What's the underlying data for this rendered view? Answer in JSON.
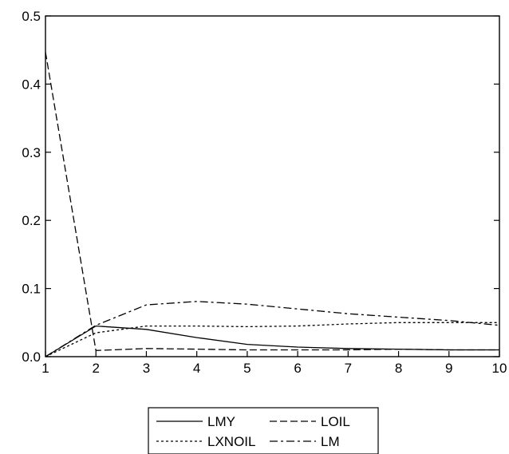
{
  "chart_data": {
    "type": "line",
    "title": "",
    "xlabel": "",
    "ylabel": "",
    "x": [
      1,
      2,
      3,
      4,
      5,
      6,
      7,
      8,
      9,
      10
    ],
    "xlim": [
      1,
      10
    ],
    "ylim": [
      0,
      0.5
    ],
    "x_ticks": [
      "1",
      "2",
      "3",
      "4",
      "5",
      "6",
      "7",
      "8",
      "9",
      "10"
    ],
    "y_ticks": [
      "0.0",
      "0.1",
      "0.2",
      "0.3",
      "0.4",
      "0.5"
    ],
    "y_tick_values": [
      0.0,
      0.1,
      0.2,
      0.3,
      0.4,
      0.5
    ],
    "grid": false,
    "legend_position": "bottom",
    "series": [
      {
        "name": "LMY",
        "style": "solid",
        "values": [
          0.0,
          0.045,
          0.04,
          0.028,
          0.018,
          0.014,
          0.012,
          0.011,
          0.01,
          0.01
        ]
      },
      {
        "name": "LOIL",
        "style": "dash",
        "values": [
          0.447,
          0.009,
          0.012,
          0.011,
          0.01,
          0.01,
          0.01,
          0.011,
          0.01,
          0.01
        ]
      },
      {
        "name": "LXNOIL",
        "style": "short-dash",
        "values": [
          0.0,
          0.035,
          0.045,
          0.045,
          0.044,
          0.045,
          0.048,
          0.05,
          0.05,
          0.05
        ]
      },
      {
        "name": "LM",
        "style": "dash-dot",
        "values": [
          0.0,
          0.046,
          0.076,
          0.081,
          0.077,
          0.07,
          0.063,
          0.058,
          0.053,
          0.046
        ]
      }
    ]
  }
}
